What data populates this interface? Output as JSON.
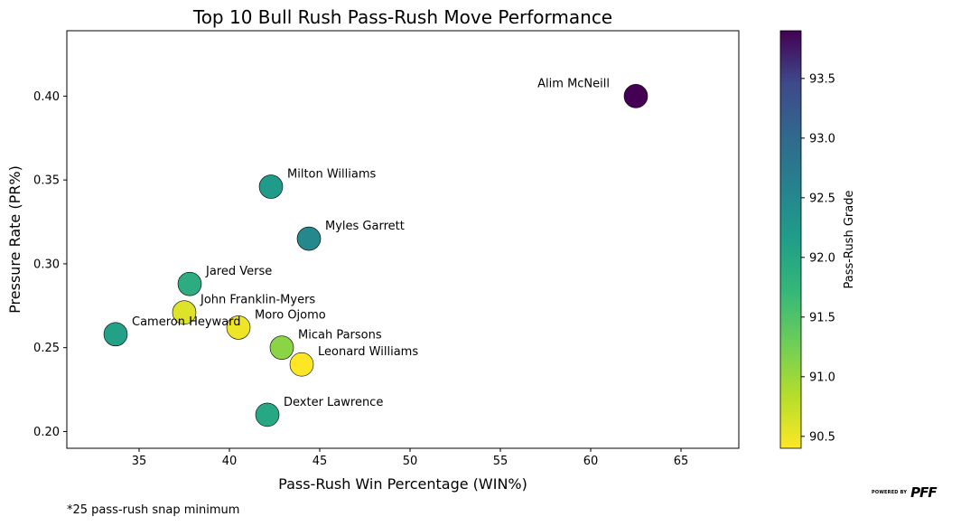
{
  "chart_data": {
    "type": "scatter",
    "title": "Top 10 Bull Rush Pass-Rush Move Performance",
    "xlabel": "Pass-Rush Win Percentage (WIN%)",
    "ylabel": "Pressure Rate (PR%)",
    "xlim": [
      31,
      68.2
    ],
    "ylim": [
      0.19,
      0.439
    ],
    "xticks": [
      35,
      40,
      45,
      50,
      55,
      60,
      65
    ],
    "yticks": [
      0.2,
      0.25,
      0.3,
      0.35,
      0.4
    ],
    "ytick_labels": [
      "0.20",
      "0.25",
      "0.30",
      "0.35",
      "0.40"
    ],
    "colorbar": {
      "label": "Pass-Rush Grade",
      "range": [
        90.4,
        93.9
      ],
      "ticks": [
        90.5,
        91.0,
        91.5,
        92.0,
        92.5,
        93.0,
        93.5
      ],
      "tick_labels": [
        "90.5",
        "91.0",
        "91.5",
        "92.0",
        "92.5",
        "93.0",
        "93.5"
      ],
      "colormap": "viridis_r"
    },
    "points": [
      {
        "name": "Alim McNeill",
        "x": 62.5,
        "y": 0.4,
        "grade": 93.9
      },
      {
        "name": "Milton Williams",
        "x": 42.3,
        "y": 0.346,
        "grade": 92.2
      },
      {
        "name": "Myles Garrett",
        "x": 44.4,
        "y": 0.315,
        "grade": 92.5
      },
      {
        "name": "Jared Verse",
        "x": 37.8,
        "y": 0.288,
        "grade": 91.9
      },
      {
        "name": "John Franklin-Myers",
        "x": 37.5,
        "y": 0.271,
        "grade": 90.6
      },
      {
        "name": "Moro Ojomo",
        "x": 40.5,
        "y": 0.262,
        "grade": 90.5
      },
      {
        "name": "Cameron Heyward",
        "x": 33.7,
        "y": 0.258,
        "grade": 92.1
      },
      {
        "name": "Micah Parsons",
        "x": 42.9,
        "y": 0.25,
        "grade": 91.1
      },
      {
        "name": "Leonard Williams",
        "x": 44.0,
        "y": 0.24,
        "grade": 90.4
      },
      {
        "name": "Dexter Lawrence",
        "x": 42.1,
        "y": 0.21,
        "grade": 92.0
      }
    ]
  },
  "footnote": "*25 pass-rush snap minimum",
  "branding": {
    "small": "POWERED BY",
    "big": "PFF"
  }
}
